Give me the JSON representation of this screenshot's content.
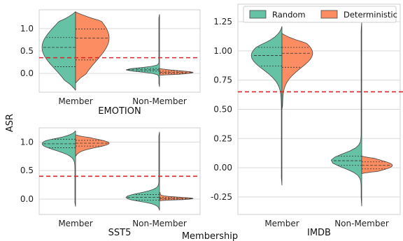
{
  "figure": {
    "shared_ylabel": "ASR",
    "shared_xlabel": "Membership",
    "legend": {
      "placement": "top-right of IMDB panel",
      "entries": [
        "Random",
        "Deterministic"
      ]
    },
    "colors": {
      "random": "#66c2a5",
      "deterministic": "#fc8d62",
      "threshold": "#d62728",
      "grid": "#d9d9d9",
      "outline": "#444444"
    }
  },
  "chart_data": [
    {
      "type": "violin",
      "panel": "EMOTION",
      "xlabel": "EMOTION",
      "categories": [
        "Member",
        "Non-Member"
      ],
      "ylim": [
        -0.42,
        1.42
      ],
      "yticks": [
        "0.0",
        "0.5",
        "1.0"
      ],
      "threshold": 0.35,
      "grid": true,
      "series": [
        {
          "name": "Random",
          "side": "left",
          "Member": {
            "min": -0.38,
            "max": 1.38,
            "q1": 0.15,
            "median": 0.58,
            "q3": 0.8
          },
          "Non-Member": {
            "min": -0.3,
            "max": 1.32,
            "q1": 0.05,
            "median": 0.08,
            "q3": 0.11
          }
        },
        {
          "name": "Deterministic",
          "side": "right",
          "Member": {
            "min": -0.22,
            "max": 1.37,
            "q1": 0.3,
            "median": 0.79,
            "q3": 0.99
          },
          "Non-Member": {
            "min": -0.04,
            "max": 0.11,
            "q1": 0.0,
            "median": 0.02,
            "q3": 0.05
          }
        }
      ]
    },
    {
      "type": "violin",
      "panel": "SST5",
      "xlabel": "SST5",
      "categories": [
        "Member",
        "Non-Member"
      ],
      "ylim": [
        -0.27,
        1.25
      ],
      "yticks": [
        "0.0",
        "0.5",
        "1.0"
      ],
      "threshold": 0.4,
      "grid": true,
      "series": [
        {
          "name": "Random",
          "side": "left",
          "Member": {
            "min": -0.13,
            "max": 1.2,
            "q1": 0.9,
            "median": 0.97,
            "q3": 1.05
          },
          "Non-Member": {
            "min": -0.2,
            "max": 1.18,
            "q1": -0.02,
            "median": 0.03,
            "q3": 0.08
          }
        },
        {
          "name": "Deterministic",
          "side": "right",
          "Member": {
            "min": 0.75,
            "max": 1.13,
            "q1": 0.93,
            "median": 0.98,
            "q3": 1.03
          },
          "Non-Member": {
            "min": -0.03,
            "max": 0.12,
            "q1": 0.0,
            "median": 0.01,
            "q3": 0.03
          }
        }
      ]
    },
    {
      "type": "violin",
      "panel": "IMDB",
      "xlabel": "IMDB",
      "categories": [
        "Member",
        "Non-Member"
      ],
      "ylim": [
        -0.4,
        1.4
      ],
      "yticks": [
        "-0.25",
        "0.00",
        "0.25",
        "0.50",
        "0.75",
        "1.00",
        "1.25"
      ],
      "threshold": 0.65,
      "grid": true,
      "series": [
        {
          "name": "Random",
          "side": "left",
          "Member": {
            "min": -0.15,
            "max": 1.21,
            "q1": 0.87,
            "median": 0.96,
            "q3": 1.03
          },
          "Non-Member": {
            "min": -0.33,
            "max": 1.25,
            "q1": 0.02,
            "median": 0.06,
            "q3": 0.1
          }
        },
        {
          "name": "Deterministic",
          "side": "right",
          "Member": {
            "min": 0.5,
            "max": 1.15,
            "q1": 0.86,
            "median": 0.98,
            "q3": 1.03
          },
          "Non-Member": {
            "min": -0.05,
            "max": 0.1,
            "q1": -0.01,
            "median": 0.02,
            "q3": 0.05
          }
        }
      ]
    }
  ]
}
